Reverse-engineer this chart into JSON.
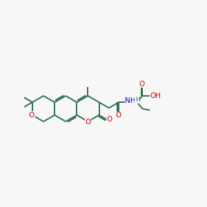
{
  "background_color": "#f7f7f7",
  "bond_color": "#2d6e4e",
  "oxygen_color": "#cc0000",
  "nitrogen_color": "#0000cc",
  "line_width": 1.4,
  "figsize": [
    3.0,
    3.0
  ],
  "dpi": 100,
  "xlim": [
    0,
    10
  ],
  "ylim": [
    3.0,
    7.5
  ]
}
